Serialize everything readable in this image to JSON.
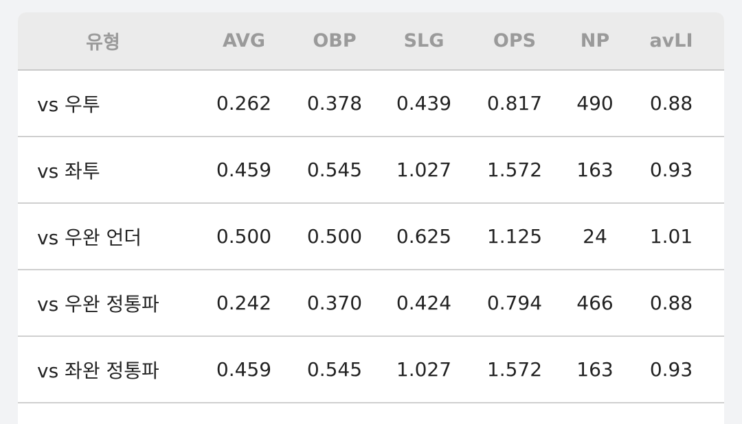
{
  "table": {
    "header": [
      "유형",
      "AVG",
      "OBP",
      "SLG",
      "OPS",
      "NP",
      "avLI"
    ],
    "rows": [
      [
        "vs 우투",
        "0.262",
        "0.378",
        "0.439",
        "0.817",
        "490",
        "0.88"
      ],
      [
        "vs 좌투",
        "0.459",
        "0.545",
        "1.027",
        "1.572",
        "163",
        "0.93"
      ],
      [
        "vs 우완 언더",
        "0.500",
        "0.500",
        "0.625",
        "1.125",
        "24",
        "1.01"
      ],
      [
        "vs 우완 정통파",
        "0.242",
        "0.370",
        "0.424",
        "0.794",
        "466",
        "0.88"
      ],
      [
        "vs 좌완 정통파",
        "0.459",
        "0.545",
        "1.027",
        "1.572",
        "163",
        "0.93"
      ]
    ]
  }
}
